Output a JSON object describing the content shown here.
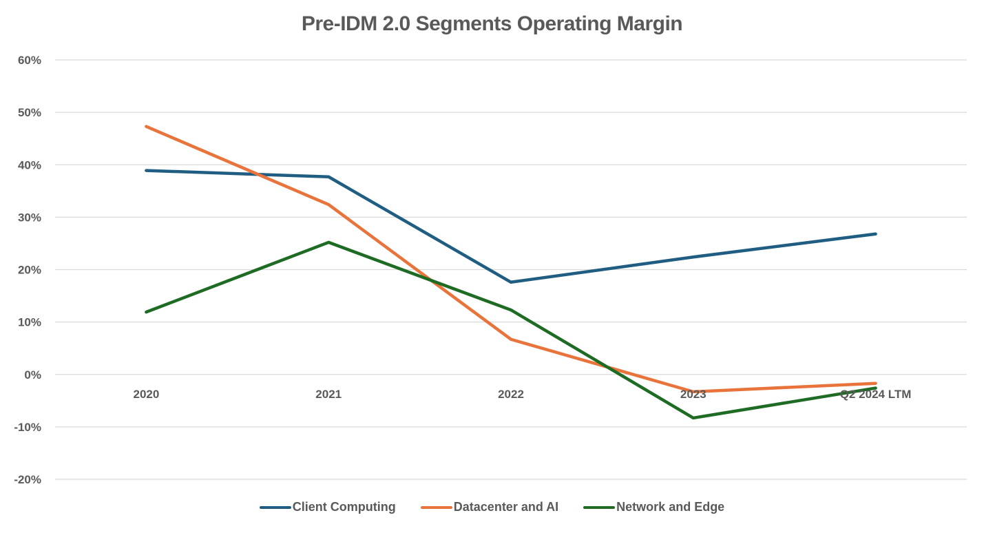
{
  "chart_data": {
    "type": "line",
    "title": "Pre-IDM 2.0 Segments Operating Margin",
    "xlabel": "",
    "ylabel": "",
    "categories": [
      "2020",
      "2021",
      "2022",
      "2023",
      "Q2 2024 LTM"
    ],
    "yticks": [
      "60%",
      "50%",
      "40%",
      "30%",
      "20%",
      "10%",
      "0%",
      "-10%",
      "-20%"
    ],
    "ylim": [
      -20,
      60
    ],
    "grid": true,
    "legend_position": "bottom",
    "series": [
      {
        "name": "Client Computing",
        "color": "#1f5e82",
        "values": [
          38.9,
          37.7,
          17.6,
          22.4,
          26.8
        ]
      },
      {
        "name": "Datacenter and AI",
        "color": "#e8743b",
        "values": [
          47.3,
          32.4,
          6.7,
          -3.3,
          -1.7
        ]
      },
      {
        "name": "Network and Edge",
        "color": "#1e6b24",
        "values": [
          11.9,
          25.2,
          12.3,
          -8.3,
          -2.6
        ]
      }
    ]
  }
}
